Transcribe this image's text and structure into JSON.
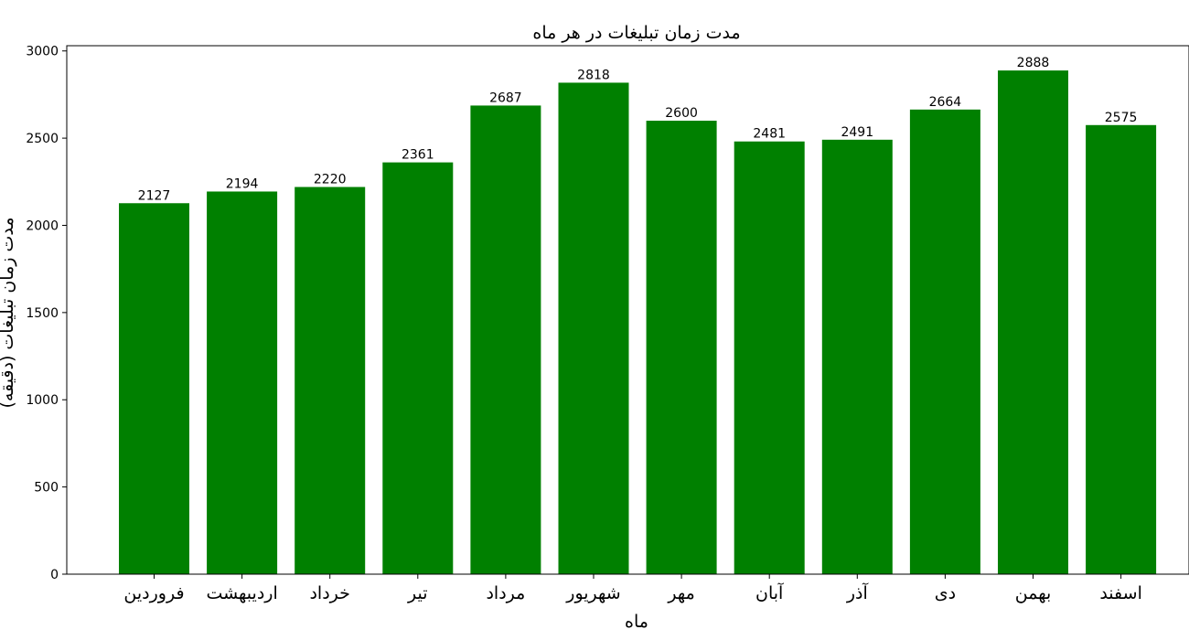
{
  "chart_data": {
    "type": "bar",
    "title": "مدت زمان تبلیغات در هر ماه",
    "xlabel": "ماه",
    "ylabel": "مدت زمان تبلیغات (دقیقه)",
    "categories": [
      "فروردین",
      "اردیبهشت",
      "خرداد",
      "تیر",
      "مرداد",
      "شهریور",
      "مهر",
      "آبان",
      "آذر",
      "دی",
      "بهمن",
      "اسفند"
    ],
    "values": [
      2127,
      2194,
      2220,
      2361,
      2687,
      2818,
      2600,
      2481,
      2491,
      2664,
      2888,
      2575
    ],
    "ylim": [
      0,
      3030
    ],
    "yticks": [
      0,
      500,
      1000,
      1500,
      2000,
      2500,
      3000
    ],
    "bar_color": "#008000",
    "grid": false,
    "legend": "none"
  }
}
